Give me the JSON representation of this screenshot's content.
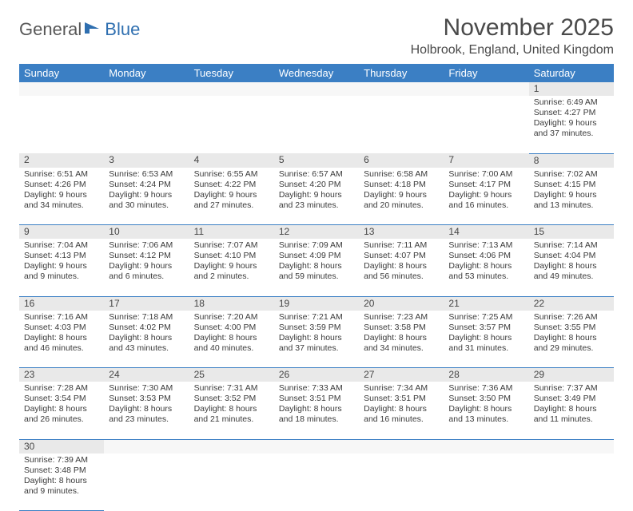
{
  "logo": {
    "part1": "General",
    "part2": "Blue"
  },
  "title": "November 2025",
  "location": "Holbrook, England, United Kingdom",
  "colors": {
    "header_bg": "#3b7fc4",
    "header_text": "#ffffff",
    "daynum_bg": "#e9e9e9",
    "rule": "#3b7fc4",
    "logo_grey": "#575757",
    "logo_blue": "#2f6fb0",
    "text": "#3a3a3a"
  },
  "weekdays": [
    "Sunday",
    "Monday",
    "Tuesday",
    "Wednesday",
    "Thursday",
    "Friday",
    "Saturday"
  ],
  "weeks": [
    [
      null,
      null,
      null,
      null,
      null,
      null,
      {
        "n": "1",
        "sr": "Sunrise: 6:49 AM",
        "ss": "Sunset: 4:27 PM",
        "dl": "Daylight: 9 hours and 37 minutes."
      }
    ],
    [
      {
        "n": "2",
        "sr": "Sunrise: 6:51 AM",
        "ss": "Sunset: 4:26 PM",
        "dl": "Daylight: 9 hours and 34 minutes."
      },
      {
        "n": "3",
        "sr": "Sunrise: 6:53 AM",
        "ss": "Sunset: 4:24 PM",
        "dl": "Daylight: 9 hours and 30 minutes."
      },
      {
        "n": "4",
        "sr": "Sunrise: 6:55 AM",
        "ss": "Sunset: 4:22 PM",
        "dl": "Daylight: 9 hours and 27 minutes."
      },
      {
        "n": "5",
        "sr": "Sunrise: 6:57 AM",
        "ss": "Sunset: 4:20 PM",
        "dl": "Daylight: 9 hours and 23 minutes."
      },
      {
        "n": "6",
        "sr": "Sunrise: 6:58 AM",
        "ss": "Sunset: 4:18 PM",
        "dl": "Daylight: 9 hours and 20 minutes."
      },
      {
        "n": "7",
        "sr": "Sunrise: 7:00 AM",
        "ss": "Sunset: 4:17 PM",
        "dl": "Daylight: 9 hours and 16 minutes."
      },
      {
        "n": "8",
        "sr": "Sunrise: 7:02 AM",
        "ss": "Sunset: 4:15 PM",
        "dl": "Daylight: 9 hours and 13 minutes."
      }
    ],
    [
      {
        "n": "9",
        "sr": "Sunrise: 7:04 AM",
        "ss": "Sunset: 4:13 PM",
        "dl": "Daylight: 9 hours and 9 minutes."
      },
      {
        "n": "10",
        "sr": "Sunrise: 7:06 AM",
        "ss": "Sunset: 4:12 PM",
        "dl": "Daylight: 9 hours and 6 minutes."
      },
      {
        "n": "11",
        "sr": "Sunrise: 7:07 AM",
        "ss": "Sunset: 4:10 PM",
        "dl": "Daylight: 9 hours and 2 minutes."
      },
      {
        "n": "12",
        "sr": "Sunrise: 7:09 AM",
        "ss": "Sunset: 4:09 PM",
        "dl": "Daylight: 8 hours and 59 minutes."
      },
      {
        "n": "13",
        "sr": "Sunrise: 7:11 AM",
        "ss": "Sunset: 4:07 PM",
        "dl": "Daylight: 8 hours and 56 minutes."
      },
      {
        "n": "14",
        "sr": "Sunrise: 7:13 AM",
        "ss": "Sunset: 4:06 PM",
        "dl": "Daylight: 8 hours and 53 minutes."
      },
      {
        "n": "15",
        "sr": "Sunrise: 7:14 AM",
        "ss": "Sunset: 4:04 PM",
        "dl": "Daylight: 8 hours and 49 minutes."
      }
    ],
    [
      {
        "n": "16",
        "sr": "Sunrise: 7:16 AM",
        "ss": "Sunset: 4:03 PM",
        "dl": "Daylight: 8 hours and 46 minutes."
      },
      {
        "n": "17",
        "sr": "Sunrise: 7:18 AM",
        "ss": "Sunset: 4:02 PM",
        "dl": "Daylight: 8 hours and 43 minutes."
      },
      {
        "n": "18",
        "sr": "Sunrise: 7:20 AM",
        "ss": "Sunset: 4:00 PM",
        "dl": "Daylight: 8 hours and 40 minutes."
      },
      {
        "n": "19",
        "sr": "Sunrise: 7:21 AM",
        "ss": "Sunset: 3:59 PM",
        "dl": "Daylight: 8 hours and 37 minutes."
      },
      {
        "n": "20",
        "sr": "Sunrise: 7:23 AM",
        "ss": "Sunset: 3:58 PM",
        "dl": "Daylight: 8 hours and 34 minutes."
      },
      {
        "n": "21",
        "sr": "Sunrise: 7:25 AM",
        "ss": "Sunset: 3:57 PM",
        "dl": "Daylight: 8 hours and 31 minutes."
      },
      {
        "n": "22",
        "sr": "Sunrise: 7:26 AM",
        "ss": "Sunset: 3:55 PM",
        "dl": "Daylight: 8 hours and 29 minutes."
      }
    ],
    [
      {
        "n": "23",
        "sr": "Sunrise: 7:28 AM",
        "ss": "Sunset: 3:54 PM",
        "dl": "Daylight: 8 hours and 26 minutes."
      },
      {
        "n": "24",
        "sr": "Sunrise: 7:30 AM",
        "ss": "Sunset: 3:53 PM",
        "dl": "Daylight: 8 hours and 23 minutes."
      },
      {
        "n": "25",
        "sr": "Sunrise: 7:31 AM",
        "ss": "Sunset: 3:52 PM",
        "dl": "Daylight: 8 hours and 21 minutes."
      },
      {
        "n": "26",
        "sr": "Sunrise: 7:33 AM",
        "ss": "Sunset: 3:51 PM",
        "dl": "Daylight: 8 hours and 18 minutes."
      },
      {
        "n": "27",
        "sr": "Sunrise: 7:34 AM",
        "ss": "Sunset: 3:51 PM",
        "dl": "Daylight: 8 hours and 16 minutes."
      },
      {
        "n": "28",
        "sr": "Sunrise: 7:36 AM",
        "ss": "Sunset: 3:50 PM",
        "dl": "Daylight: 8 hours and 13 minutes."
      },
      {
        "n": "29",
        "sr": "Sunrise: 7:37 AM",
        "ss": "Sunset: 3:49 PM",
        "dl": "Daylight: 8 hours and 11 minutes."
      }
    ],
    [
      {
        "n": "30",
        "sr": "Sunrise: 7:39 AM",
        "ss": "Sunset: 3:48 PM",
        "dl": "Daylight: 8 hours and 9 minutes."
      },
      null,
      null,
      null,
      null,
      null,
      null
    ]
  ]
}
